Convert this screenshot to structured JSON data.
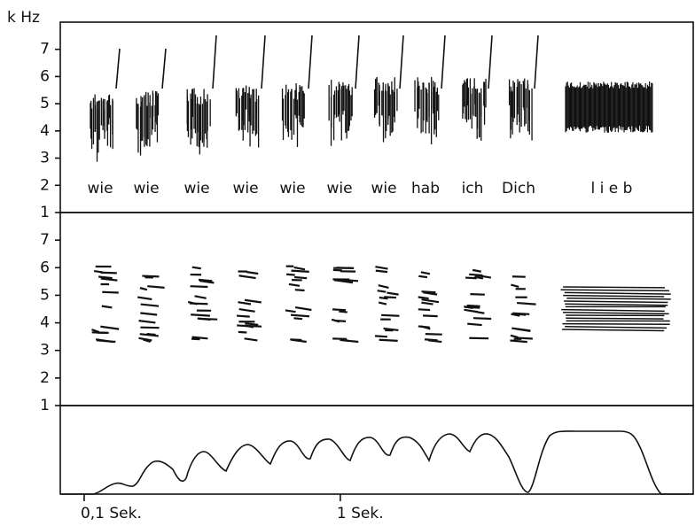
{
  "chart_data": [
    {
      "type": "spectrogram",
      "y_label": "k Hz",
      "ylim": [
        1,
        8
      ],
      "yticks": [
        1,
        2,
        3,
        4,
        5,
        6,
        7
      ],
      "annotations": [
        "wie",
        "wie",
        "wie",
        "wie",
        "wie",
        "wie",
        "wie",
        "hab",
        "ich",
        "Dich",
        "l i e b"
      ]
    },
    {
      "type": "spectrogram",
      "ylim": [
        1,
        8
      ],
      "yticks": [
        1,
        2,
        3,
        4,
        5,
        6,
        7
      ]
    },
    {
      "type": "envelope",
      "xlim": [
        0.016,
        2.24
      ],
      "xticks": [
        {
          "value": 0.1,
          "label": "0,1 Sek."
        },
        {
          "value": 1,
          "label": "1 Sek."
        }
      ]
    }
  ]
}
